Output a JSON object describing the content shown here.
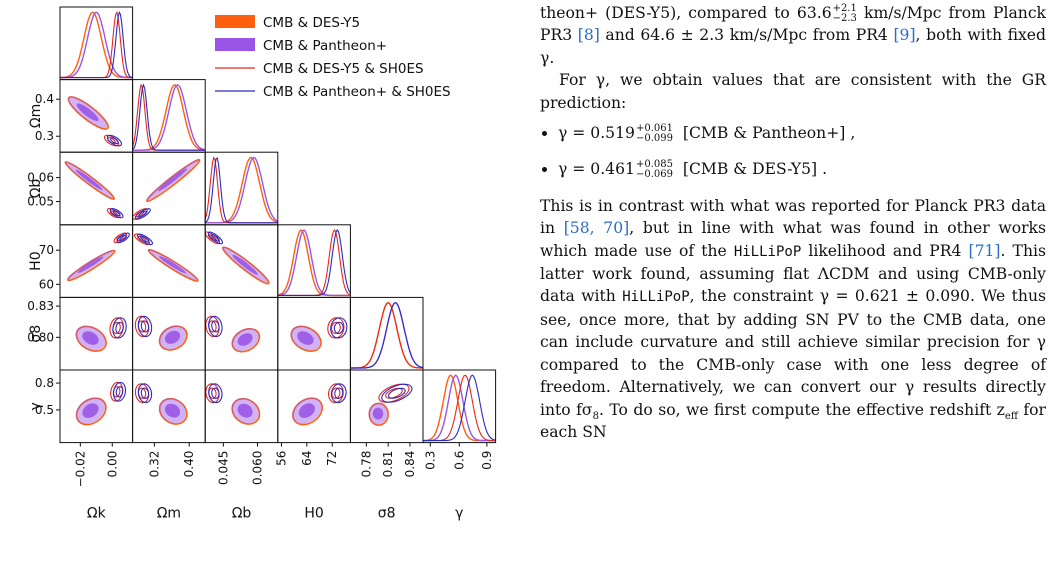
{
  "figure": {
    "legend": [
      {
        "label": "CMB & DES-Y5",
        "color": "#ff5f0f",
        "style": "filled"
      },
      {
        "label": "CMB & Pantheon+",
        "color": "#9a55e6",
        "style": "filled"
      },
      {
        "label": "CMB & DES-Y5 & SH0ES",
        "color": "#e8261e",
        "style": "line"
      },
      {
        "label": "CMB & Pantheon+ & SH0ES",
        "color": "#2b2bc2",
        "style": "line"
      }
    ],
    "parameters": [
      "Ωk",
      "Ωm",
      "Ωb",
      "H0",
      "σ8",
      "γ"
    ],
    "ticks": {
      "Omega_k": [
        "−0.02",
        "0.00"
      ],
      "Omega_m_y": [
        "0.4",
        "0.3"
      ],
      "Omega_m_x": [
        "0.32",
        "0.40"
      ],
      "Omega_b_y": [
        "0.06",
        "0.05"
      ],
      "Omega_b_x": [
        "0.045",
        "0.060"
      ],
      "H0_y": [
        "70",
        "60"
      ],
      "H0_x": [
        "56",
        "64",
        "72"
      ],
      "sigma8_y": [
        "0.83",
        "0.80"
      ],
      "sigma8_x": [
        "0.78",
        "0.81",
        "0.84"
      ],
      "gamma_y": [
        "0.8",
        "0.5"
      ],
      "gamma_x": [
        "0.3",
        "0.6",
        "0.9"
      ]
    }
  },
  "text": {
    "p1_a": "theon+ (DES-Y5), compared to 63.6",
    "p1_a_sup": "+2.1",
    "p1_a_sub": "−2.3",
    "p1_b": " km/s/Mpc from Planck PR3 ",
    "p1_cite1": "[8]",
    "p1_c": " and 64.6 ± 2.3 km/s/Mpc from PR4 ",
    "p1_cite2": "[9]",
    "p1_d": ", both with fixed γ.",
    "p2": "For γ, we obtain values that are consistent with the GR prediction:",
    "b1_val": "γ = 0.519",
    "b1_sup": "+0.061",
    "b1_sub": "−0.099",
    "b1_tag": "[CMB & Pantheon+] ,",
    "b2_val": "γ = 0.461",
    "b2_sup": "+0.085",
    "b2_sub": "−0.069",
    "b2_tag": "[CMB & DES-Y5] .",
    "p3_a": "This is in contrast with what was reported for Planck PR3 data in ",
    "p3_cite1": "[58, 70]",
    "p3_b": ", but in line with what was found in other works which made use of the ",
    "p3_mono1": "HiLLiPoP",
    "p3_c": " likelihood and PR4 ",
    "p3_cite2": "[71]",
    "p3_d": ". This latter work found, assuming flat ΛCDM and using CMB-only data with ",
    "p3_mono2": "HiLLiPoP",
    "p3_e": ", the constraint γ = 0.621 ± 0.090. We thus see, once more, that by adding SN PV to the CMB data, one can include curvature and still achieve similar precision for γ compared to the CMB-only case with one less degree of freedom. Alternatively, we can convert our γ results directly into fσ",
    "p3_e_sub": "8",
    "p3_f": ". To do so, we first compute the effective redshift z",
    "p3_f_sub": "eff",
    "p3_g": " for each SN"
  }
}
